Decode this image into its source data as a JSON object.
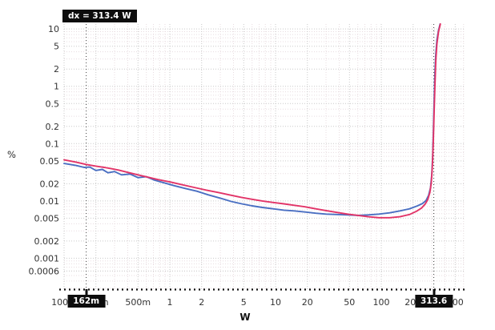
{
  "colors": {
    "series_blue": "#4a6fc2",
    "series_red": "#e23468",
    "grid_major": "#c9c9c9",
    "grid_minor": "#e8dce0",
    "axis_text": "#333333",
    "cursor_line": "#3a3a3a",
    "bottom_cursor_line": "#111111",
    "badge_bg": "#0d0d0d",
    "badge_fg": "#ffffff"
  },
  "cursors": {
    "dx_label": "dx = 313.4 W",
    "x1": {
      "label": "162m",
      "value": 0.162
    },
    "x2": {
      "label": "313.6",
      "value": 313.6
    }
  },
  "chart_data": {
    "type": "line",
    "title": "",
    "xlabel": "W",
    "ylabel": "%",
    "x_axis": {
      "scale": "log",
      "min": 0.1,
      "max": 613,
      "ticks": [
        {
          "value": 0.1,
          "label": "100m"
        },
        {
          "value": 0.2,
          "label": "200m"
        },
        {
          "value": 0.5,
          "label": "500m"
        },
        {
          "value": 1,
          "label": "1"
        },
        {
          "value": 2,
          "label": "2"
        },
        {
          "value": 5,
          "label": "5"
        },
        {
          "value": 10,
          "label": "10"
        },
        {
          "value": 20,
          "label": "20"
        },
        {
          "value": 50,
          "label": "50"
        },
        {
          "value": 100,
          "label": "100"
        },
        {
          "value": 200,
          "label": "200"
        },
        {
          "value": 500,
          "label": "500"
        }
      ]
    },
    "y_axis": {
      "scale": "log",
      "min": 0.00028,
      "max": 12.2,
      "ticks": [
        {
          "value": 10,
          "label": "10"
        },
        {
          "value": 5,
          "label": "5"
        },
        {
          "value": 2,
          "label": "2"
        },
        {
          "value": 1,
          "label": "1"
        },
        {
          "value": 0.5,
          "label": "0.5"
        },
        {
          "value": 0.2,
          "label": "0.2"
        },
        {
          "value": 0.1,
          "label": "0.1"
        },
        {
          "value": 0.05,
          "label": "0.05"
        },
        {
          "value": 0.02,
          "label": "0.02"
        },
        {
          "value": 0.01,
          "label": "0.01"
        },
        {
          "value": 0.005,
          "label": "0.005"
        },
        {
          "value": 0.002,
          "label": "0.002"
        },
        {
          "value": 0.001,
          "label": "0.001"
        },
        {
          "value": 0.0006,
          "label": "0.0006"
        }
      ]
    },
    "series": [
      {
        "name": "blue_trace",
        "color": "#4a6fc2",
        "points": [
          [
            0.1,
            0.045
          ],
          [
            0.13,
            0.0415
          ],
          [
            0.155,
            0.0385
          ],
          [
            0.175,
            0.039
          ],
          [
            0.2,
            0.034
          ],
          [
            0.23,
            0.0355
          ],
          [
            0.26,
            0.031
          ],
          [
            0.3,
            0.0325
          ],
          [
            0.35,
            0.0285
          ],
          [
            0.42,
            0.0295
          ],
          [
            0.5,
            0.0255
          ],
          [
            0.6,
            0.0265
          ],
          [
            0.72,
            0.023
          ],
          [
            0.9,
            0.0205
          ],
          [
            1.1,
            0.0185
          ],
          [
            1.4,
            0.0165
          ],
          [
            1.8,
            0.0148
          ],
          [
            2.3,
            0.0128
          ],
          [
            3,
            0.0112
          ],
          [
            3.8,
            0.0098
          ],
          [
            4.8,
            0.0089
          ],
          [
            6,
            0.0082
          ],
          [
            7.5,
            0.0077
          ],
          [
            9.5,
            0.0073
          ],
          [
            12,
            0.0069
          ],
          [
            15,
            0.0067
          ],
          [
            19,
            0.0064
          ],
          [
            24,
            0.0061
          ],
          [
            30,
            0.0059
          ],
          [
            38,
            0.0058
          ],
          [
            48,
            0.0057
          ],
          [
            60,
            0.0056
          ],
          [
            75,
            0.0057
          ],
          [
            95,
            0.0059
          ],
          [
            120,
            0.0062
          ],
          [
            150,
            0.0067
          ],
          [
            185,
            0.0073
          ],
          [
            220,
            0.0082
          ],
          [
            245,
            0.009
          ],
          [
            265,
            0.0102
          ],
          [
            280,
            0.0125
          ],
          [
            292,
            0.017
          ],
          [
            300,
            0.028
          ],
          [
            306,
            0.06
          ],
          [
            311,
            0.17
          ],
          [
            316,
            0.55
          ],
          [
            321,
            1.6
          ],
          [
            327,
            3.5
          ],
          [
            336,
            6.5
          ],
          [
            348,
            9.5
          ],
          [
            360,
            12.2
          ]
        ]
      },
      {
        "name": "red_trace",
        "color": "#e23468",
        "points": [
          [
            0.1,
            0.052
          ],
          [
            0.13,
            0.0475
          ],
          [
            0.16,
            0.0435
          ],
          [
            0.2,
            0.0405
          ],
          [
            0.24,
            0.0385
          ],
          [
            0.28,
            0.0365
          ],
          [
            0.33,
            0.0345
          ],
          [
            0.4,
            0.0315
          ],
          [
            0.5,
            0.0285
          ],
          [
            0.62,
            0.026
          ],
          [
            0.78,
            0.0235
          ],
          [
            1,
            0.0215
          ],
          [
            1.3,
            0.0192
          ],
          [
            1.7,
            0.0172
          ],
          [
            2.2,
            0.0155
          ],
          [
            2.9,
            0.014
          ],
          [
            3.7,
            0.0127
          ],
          [
            4.7,
            0.0116
          ],
          [
            6,
            0.0107
          ],
          [
            7.5,
            0.01
          ],
          [
            9.5,
            0.0094
          ],
          [
            12,
            0.0089
          ],
          [
            15,
            0.0084
          ],
          [
            19,
            0.0079
          ],
          [
            24,
            0.0073
          ],
          [
            30,
            0.0068
          ],
          [
            38,
            0.0063
          ],
          [
            48,
            0.0059
          ],
          [
            60,
            0.0056
          ],
          [
            75,
            0.0053
          ],
          [
            95,
            0.0051
          ],
          [
            120,
            0.0051
          ],
          [
            150,
            0.0053
          ],
          [
            185,
            0.0058
          ],
          [
            215,
            0.0066
          ],
          [
            240,
            0.0075
          ],
          [
            260,
            0.0088
          ],
          [
            275,
            0.0105
          ],
          [
            288,
            0.014
          ],
          [
            297,
            0.021
          ],
          [
            304,
            0.04
          ],
          [
            310,
            0.1
          ],
          [
            316,
            0.35
          ],
          [
            322,
            1.1
          ],
          [
            328,
            2.8
          ],
          [
            336,
            5.5
          ],
          [
            348,
            9
          ],
          [
            362,
            12.2
          ]
        ]
      }
    ]
  }
}
